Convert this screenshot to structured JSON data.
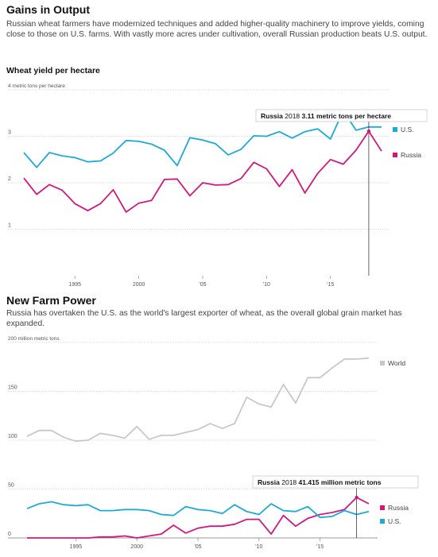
{
  "section1": {
    "title": "Gains in Output",
    "description": "Russian wheat farmers have modernized techniques and added higher-quality machinery to improve yields, coming close to those on U.S. farms. With vastly more acres under cultivation, overall Russian production beats U.S. output.",
    "chart_title": "Wheat yield per hectare"
  },
  "section2": {
    "title": "New Farm Power",
    "description": "Russia has overtaken the U.S. as the world's largest exporter of wheat, as the overall global grain market has expanded."
  },
  "colors": {
    "us": "#1cabd8",
    "russia": "#d4177d",
    "world": "#c8c8c8"
  },
  "chart_data": [
    {
      "type": "line",
      "title": "Wheat yield per hectare",
      "unit_label": "4 metric tons per hectare",
      "x": [
        1991,
        1992,
        1993,
        1994,
        1995,
        1996,
        1997,
        1998,
        1999,
        2000,
        2001,
        2002,
        2003,
        2004,
        2005,
        2006,
        2007,
        2008,
        2009,
        2010,
        2011,
        2012,
        2013,
        2014,
        2015,
        2016,
        2017,
        2018,
        2019
      ],
      "xticks": [
        "1995",
        "2000",
        "'05",
        "'10",
        "'15"
      ],
      "yticks": [
        "1",
        "2",
        "3"
      ],
      "ylim": [
        0,
        4
      ],
      "series": [
        {
          "name": "U.S.",
          "color": "#1cabd8",
          "values": [
            2.65,
            2.33,
            2.65,
            2.58,
            2.54,
            2.45,
            2.47,
            2.64,
            2.91,
            2.89,
            2.83,
            2.7,
            2.37,
            2.97,
            2.92,
            2.84,
            2.6,
            2.72,
            3.01,
            3.0,
            3.1,
            2.96,
            3.1,
            3.16,
            2.94,
            3.55,
            3.13,
            3.2,
            3.2
          ]
        },
        {
          "name": "Russia",
          "color": "#d4177d",
          "values": [
            2.1,
            1.75,
            1.96,
            1.84,
            1.55,
            1.4,
            1.55,
            1.85,
            1.37,
            1.56,
            1.62,
            2.07,
            2.08,
            1.72,
            2.0,
            1.95,
            1.96,
            2.09,
            2.44,
            2.3,
            1.92,
            2.28,
            1.78,
            2.2,
            2.5,
            2.4,
            2.7,
            3.11,
            2.68
          ]
        }
      ],
      "annotation": {
        "series": "Russia",
        "year": "2018",
        "value": "3.11 metric tons per hectare"
      }
    },
    {
      "type": "line",
      "title": "",
      "unit_label": "200 million metric tons",
      "x": [
        1991,
        1992,
        1993,
        1994,
        1995,
        1996,
        1997,
        1998,
        1999,
        2000,
        2001,
        2002,
        2003,
        2004,
        2005,
        2006,
        2007,
        2008,
        2009,
        2010,
        2011,
        2012,
        2013,
        2014,
        2015,
        2016,
        2017,
        2018,
        2019
      ],
      "xticks": [
        "1995",
        "2000",
        "'05",
        "'10",
        "'15"
      ],
      "yticks": [
        "0",
        "50",
        "100",
        "150"
      ],
      "ylim": [
        0,
        200
      ],
      "series": [
        {
          "name": "World",
          "color": "#c8c8c8",
          "values": [
            104,
            110,
            110,
            103,
            99,
            100,
            107,
            105,
            102,
            114,
            101,
            105,
            105,
            108,
            111,
            117,
            112,
            117,
            144,
            137,
            134,
            157,
            138,
            164,
            164,
            174,
            183,
            183,
            184
          ]
        },
        {
          "name": "Russia",
          "color": "#d4177d",
          "values": [
            0,
            0,
            0,
            0,
            0,
            0,
            1,
            1,
            2,
            0,
            2,
            4,
            13,
            5,
            10,
            12,
            12,
            14,
            19,
            19,
            4,
            23,
            12,
            20,
            24,
            26,
            29,
            41.415,
            35
          ]
        },
        {
          "name": "U.S.",
          "color": "#1cabd8",
          "values": [
            30,
            35,
            37,
            34,
            33,
            34,
            28,
            28,
            29,
            29,
            28,
            24,
            23,
            32,
            29,
            28,
            25,
            34,
            27,
            24,
            35,
            28,
            27,
            32,
            21,
            22,
            28,
            24,
            27
          ]
        }
      ],
      "annotation": {
        "series": "Russia",
        "year": "2018",
        "value": "41.415 million metric tons"
      }
    }
  ]
}
